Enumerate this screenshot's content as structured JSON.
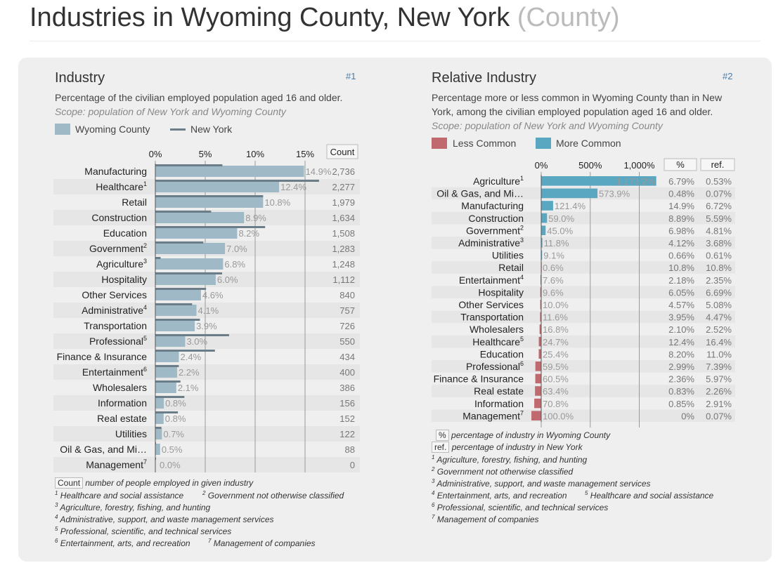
{
  "page": {
    "title": "Industries in Wyoming County, New York",
    "title_suffix": "(County)"
  },
  "colors": {
    "wyoming_bar": "#9fbac6",
    "ny_line": "#6b7d88",
    "less_common": "#c0696e",
    "more_common": "#5aa7c2",
    "link": "#4a7ba6"
  },
  "chart1": {
    "title": "Industry",
    "number": "#1",
    "description": "Percentage of the civilian employed population aged 16 and older.",
    "scope": "Scope: population of New York and Wyoming County",
    "legend_wyoming": "Wyoming County",
    "legend_ny": "New York",
    "count_header": "Count",
    "footnotes": {
      "count_badge": "Count",
      "count_text": "number of people employed in given industry",
      "f1": "Healthcare and social assistance",
      "f2": "Government not otherwise classified",
      "f3": "Agriculture, forestry, fishing, and hunting",
      "f4": "Administrative, support, and waste management services",
      "f5": "Professional, scientific, and technical services",
      "f6": "Entertainment, arts, and recreation",
      "f7": "Management of companies"
    }
  },
  "chart2": {
    "title": "Relative Industry",
    "number": "#2",
    "description_line1": "Percentage more or less common in Wyoming County than in New",
    "description_line2": "York, among the civilian employed population aged 16 and older.",
    "scope": "Scope: population of New York and Wyoming County",
    "legend_less": "Less Common",
    "legend_more": "More Common",
    "pct_header": "%",
    "ref_header": "ref.",
    "footnotes": {
      "pct_badge": "%",
      "pct_text": "percentage of industry in Wyoming County",
      "ref_badge": "ref.",
      "ref_text": "percentage of industry in New York",
      "f1": "Agriculture, forestry, fishing, and hunting",
      "f2": "Government not otherwise classified",
      "f3": "Administrative, support, and waste management services",
      "f4": "Entertainment, arts, and recreation",
      "f5": "Healthcare and social assistance",
      "f6": "Professional, scientific, and technical services",
      "f7": "Management of companies"
    }
  },
  "chart_data": [
    {
      "type": "bar",
      "title": "Industry",
      "xlim": [
        0,
        20
      ],
      "xticks": [
        {
          "v": 0,
          "label": "0%"
        },
        {
          "v": 5,
          "label": "5%"
        },
        {
          "v": 10,
          "label": "10%"
        },
        {
          "v": 15,
          "label": "15%"
        }
      ],
      "series": [
        {
          "name": "Wyoming County",
          "kind": "bar"
        },
        {
          "name": "New York",
          "kind": "line"
        }
      ],
      "rows": [
        {
          "label": "Manufacturing",
          "sup": "",
          "wyoming": 14.9,
          "wyoming_label": "14.9%",
          "ny": 6.72,
          "count": "2,736"
        },
        {
          "label": "Healthcare",
          "sup": "1",
          "wyoming": 12.4,
          "wyoming_label": "12.4%",
          "ny": 16.4,
          "count": "2,277"
        },
        {
          "label": "Retail",
          "sup": "",
          "wyoming": 10.8,
          "wyoming_label": "10.8%",
          "ny": 10.8,
          "count": "1,979"
        },
        {
          "label": "Construction",
          "sup": "",
          "wyoming": 8.89,
          "wyoming_label": "8.9%",
          "ny": 5.59,
          "count": "1,634"
        },
        {
          "label": "Education",
          "sup": "",
          "wyoming": 8.2,
          "wyoming_label": "8.2%",
          "ny": 11.0,
          "count": "1,508"
        },
        {
          "label": "Government",
          "sup": "2",
          "wyoming": 6.98,
          "wyoming_label": "7.0%",
          "ny": 4.81,
          "count": "1,283"
        },
        {
          "label": "Agriculture",
          "sup": "3",
          "wyoming": 6.79,
          "wyoming_label": "6.8%",
          "ny": 0.53,
          "count": "1,248"
        },
        {
          "label": "Hospitality",
          "sup": "",
          "wyoming": 6.05,
          "wyoming_label": "6.0%",
          "ny": 6.69,
          "count": "1,112"
        },
        {
          "label": "Other Services",
          "sup": "",
          "wyoming": 4.57,
          "wyoming_label": "4.6%",
          "ny": 5.08,
          "count": "840"
        },
        {
          "label": "Administrative",
          "sup": "4",
          "wyoming": 4.12,
          "wyoming_label": "4.1%",
          "ny": 3.68,
          "count": "757"
        },
        {
          "label": "Transportation",
          "sup": "",
          "wyoming": 3.95,
          "wyoming_label": "3.9%",
          "ny": 4.47,
          "count": "726"
        },
        {
          "label": "Professional",
          "sup": "5",
          "wyoming": 2.99,
          "wyoming_label": "3.0%",
          "ny": 7.39,
          "count": "550"
        },
        {
          "label": "Finance & Insurance",
          "sup": "",
          "wyoming": 2.36,
          "wyoming_label": "2.4%",
          "ny": 5.97,
          "count": "434"
        },
        {
          "label": "Entertainment",
          "sup": "6",
          "wyoming": 2.18,
          "wyoming_label": "2.2%",
          "ny": 2.35,
          "count": "400"
        },
        {
          "label": "Wholesalers",
          "sup": "",
          "wyoming": 2.1,
          "wyoming_label": "2.1%",
          "ny": 2.52,
          "count": "386"
        },
        {
          "label": "Information",
          "sup": "",
          "wyoming": 0.85,
          "wyoming_label": "0.8%",
          "ny": 2.91,
          "count": "156"
        },
        {
          "label": "Real estate",
          "sup": "",
          "wyoming": 0.83,
          "wyoming_label": "0.8%",
          "ny": 2.26,
          "count": "152"
        },
        {
          "label": "Utilities",
          "sup": "",
          "wyoming": 0.66,
          "wyoming_label": "0.7%",
          "ny": 0.61,
          "count": "122"
        },
        {
          "label": "Oil & Gas, and Mi…",
          "sup": "",
          "wyoming": 0.48,
          "wyoming_label": "0.5%",
          "ny": 0.07,
          "count": "88"
        },
        {
          "label": "Management",
          "sup": "7",
          "wyoming": 0,
          "wyoming_label": "0.0%",
          "ny": 0.07,
          "count": "0"
        }
      ]
    },
    {
      "type": "bar",
      "title": "Relative Industry",
      "xlim": [
        -100,
        1173.2
      ],
      "xticks": [
        {
          "v": 0,
          "label": "0%"
        },
        {
          "v": 500,
          "label": "500%"
        },
        {
          "v": 1000,
          "label": "1,000%"
        }
      ],
      "series": [
        {
          "name": "Less Common",
          "color": "#c0696e"
        },
        {
          "name": "More Common",
          "color": "#5aa7c2"
        }
      ],
      "rows": [
        {
          "label": "Agriculture",
          "sup": "1",
          "value": 1173.2,
          "value_label": "1,173.2%",
          "pct": "6.79%",
          "ref": "0.53%"
        },
        {
          "label": "Oil & Gas, and Mi…",
          "sup": "",
          "value": 573.9,
          "value_label": "573.9%",
          "pct": "0.48%",
          "ref": "0.07%"
        },
        {
          "label": "Manufacturing",
          "sup": "",
          "value": 121.4,
          "value_label": "121.4%",
          "pct": "14.9%",
          "ref": "6.72%"
        },
        {
          "label": "Construction",
          "sup": "",
          "value": 59.0,
          "value_label": "59.0%",
          "pct": "8.89%",
          "ref": "5.59%"
        },
        {
          "label": "Government",
          "sup": "2",
          "value": 45.0,
          "value_label": "45.0%",
          "pct": "6.98%",
          "ref": "4.81%"
        },
        {
          "label": "Administrative",
          "sup": "3",
          "value": 11.8,
          "value_label": "11.8%",
          "pct": "4.12%",
          "ref": "3.68%"
        },
        {
          "label": "Utilities",
          "sup": "",
          "value": 9.1,
          "value_label": "9.1%",
          "pct": "0.66%",
          "ref": "0.61%"
        },
        {
          "label": "Retail",
          "sup": "",
          "value": -0.6,
          "value_label": "0.6%",
          "pct": "10.8%",
          "ref": "10.8%"
        },
        {
          "label": "Entertainment",
          "sup": "4",
          "value": -7.6,
          "value_label": "7.6%",
          "pct": "2.18%",
          "ref": "2.35%"
        },
        {
          "label": "Hospitality",
          "sup": "",
          "value": -9.6,
          "value_label": "9.6%",
          "pct": "6.05%",
          "ref": "6.69%"
        },
        {
          "label": "Other Services",
          "sup": "",
          "value": -10.0,
          "value_label": "10.0%",
          "pct": "4.57%",
          "ref": "5.08%"
        },
        {
          "label": "Transportation",
          "sup": "",
          "value": -11.6,
          "value_label": "11.6%",
          "pct": "3.95%",
          "ref": "4.47%"
        },
        {
          "label": "Wholesalers",
          "sup": "",
          "value": -16.8,
          "value_label": "16.8%",
          "pct": "2.10%",
          "ref": "2.52%"
        },
        {
          "label": "Healthcare",
          "sup": "5",
          "value": -24.7,
          "value_label": "24.7%",
          "pct": "12.4%",
          "ref": "16.4%"
        },
        {
          "label": "Education",
          "sup": "",
          "value": -25.4,
          "value_label": "25.4%",
          "pct": "8.20%",
          "ref": "11.0%"
        },
        {
          "label": "Professional",
          "sup": "6",
          "value": -59.5,
          "value_label": "59.5%",
          "pct": "2.99%",
          "ref": "7.39%"
        },
        {
          "label": "Finance & Insurance",
          "sup": "",
          "value": -60.5,
          "value_label": "60.5%",
          "pct": "2.36%",
          "ref": "5.97%"
        },
        {
          "label": "Real estate",
          "sup": "",
          "value": -63.4,
          "value_label": "63.4%",
          "pct": "0.83%",
          "ref": "2.26%"
        },
        {
          "label": "Information",
          "sup": "",
          "value": -70.8,
          "value_label": "70.8%",
          "pct": "0.85%",
          "ref": "2.91%"
        },
        {
          "label": "Management",
          "sup": "7",
          "value": -100.0,
          "value_label": "100.0%",
          "pct": "0%",
          "ref": "0.07%"
        }
      ]
    }
  ]
}
